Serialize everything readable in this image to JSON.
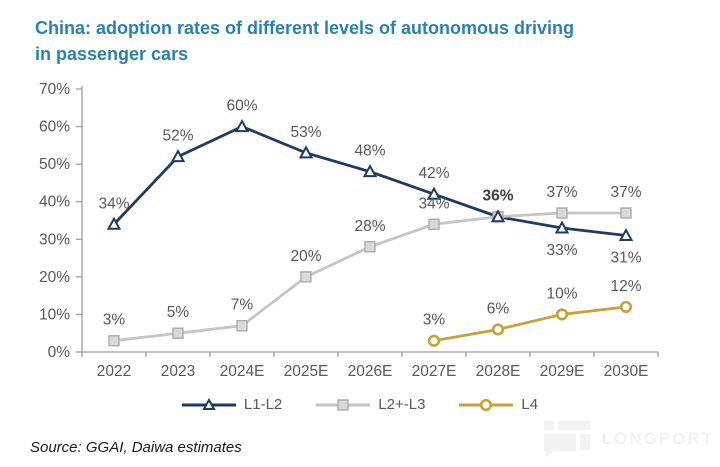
{
  "source": "Source: GGAI, Daiwa estimates",
  "watermark": "LONGPORT",
  "colors": {
    "title": "#2B81AE",
    "axis": "#9E9E9E",
    "tick_label": "#595959",
    "data_label": "#595959",
    "data_label_overlap": "#404040",
    "series_l1l2": "#1F3B64",
    "series_l2l3": "#C5C5C5",
    "series_l2l3_marker_fill": "#D9D9D9",
    "series_l2l3_marker_stroke": "#ACACAC",
    "series_l4": "#C9A136",
    "watermark": "#f2f2f2"
  },
  "chart_data": {
    "type": "line",
    "title": "China: adoption rates of different levels of autonomous driving in passenger cars",
    "title_lines": [
      "China: adoption rates of different levels of autonomous driving",
      "in passenger cars"
    ],
    "categories": [
      "2022",
      "2023",
      "2024E",
      "2025E",
      "2026E",
      "2027E",
      "2028E",
      "2029E",
      "2030E"
    ],
    "series": [
      {
        "name": "L1-L2",
        "marker": "triangle",
        "color": "#1F3B64",
        "values": [
          34,
          52,
          60,
          53,
          48,
          42,
          36,
          33,
          31
        ],
        "label_below_indices": [
          7,
          8
        ]
      },
      {
        "name": "L2+-L3",
        "marker": "square",
        "color": "#C5C5C5",
        "marker_fill": "#D9D9D9",
        "marker_stroke": "#ACACAC",
        "values": [
          3,
          5,
          7,
          20,
          28,
          34,
          36,
          37,
          37
        ],
        "label_below_indices": []
      },
      {
        "name": "L4",
        "marker": "circle",
        "color": "#C9A136",
        "values": [
          null,
          null,
          null,
          null,
          null,
          3,
          6,
          10,
          12
        ],
        "label_below_indices": []
      }
    ],
    "xlabel": "",
    "ylabel": "",
    "ylim": [
      0,
      70
    ],
    "ytick_step": 10,
    "ytick_suffix": "%",
    "data_label_suffix": "%",
    "grid": false,
    "legend_position": "bottom"
  }
}
